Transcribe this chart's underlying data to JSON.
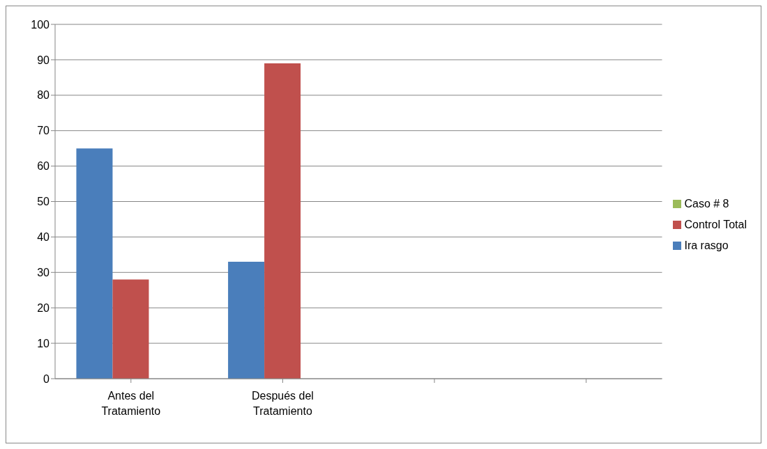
{
  "chart_data": {
    "type": "bar",
    "categories": [
      "Antes del Tratamiento",
      "Después del Tratamiento",
      null,
      null
    ],
    "series": [
      {
        "name": "Ira rasgo",
        "color": "#4a7ebb",
        "values": [
          65,
          33,
          null,
          null
        ]
      },
      {
        "name": "Control Total",
        "color": "#c0504d",
        "values": [
          28,
          89,
          null,
          null
        ]
      },
      {
        "name": "Caso # 8",
        "color": "#9bbb59",
        "values": [
          null,
          null,
          null,
          null
        ]
      }
    ],
    "ylim": [
      0,
      100
    ],
    "yticks": [
      0,
      10,
      20,
      30,
      40,
      50,
      60,
      70,
      80,
      90,
      100
    ],
    "grid": "y",
    "legend": "right"
  }
}
